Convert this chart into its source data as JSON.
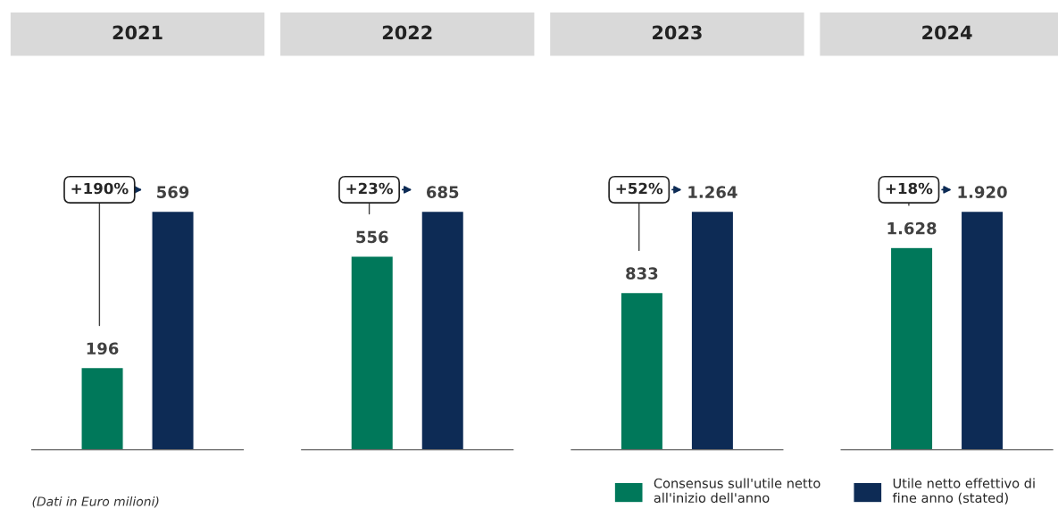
{
  "chart_data": [
    {
      "type": "bar",
      "title": "2021",
      "categories": [
        null
      ],
      "series": [
        {
          "color": "#00785a",
          "values": [
            196
          ],
          "value_labels": [
            "196"
          ]
        },
        {
          "color": "#0d2b55",
          "values": [
            569
          ],
          "value_labels": [
            "569"
          ]
        }
      ],
      "annotations": [
        "+190%",
        "(Dati in Euro milioni)"
      ]
    },
    {
      "type": "bar",
      "title": "2022",
      "categories": [
        null
      ],
      "series": [
        {
          "color": "#00785a",
          "values": [
            556
          ],
          "value_labels": [
            "556"
          ]
        },
        {
          "color": "#0d2b55",
          "values": [
            685
          ],
          "value_labels": [
            "685"
          ]
        }
      ],
      "annotations": [
        "+23%"
      ]
    },
    {
      "type": "bar",
      "title": "2023",
      "categories": [
        null
      ],
      "series": [
        {
          "color": "#00785a",
          "values": [
            833
          ],
          "value_labels": [
            "833"
          ]
        },
        {
          "color": "#0d2b55",
          "values": [
            1264
          ],
          "value_labels": [
            "1.264"
          ]
        }
      ],
      "annotations": [
        "+52%"
      ]
    },
    {
      "type": "bar",
      "title": "2024",
      "categories": [
        null
      ],
      "legend": "bottom",
      "series": [
        {
          "name": "Consensus sull'utile netto\nall'inizio dell'anno",
          "color": "#00785a",
          "values": [
            1628
          ],
          "value_labels": [
            "1.628"
          ]
        },
        {
          "name": "Utile netto effettivo di\nfine anno (stated)",
          "color": "#0d2b55",
          "values": [
            1920
          ],
          "value_labels": [
            "1.920"
          ]
        }
      ],
      "annotations": [
        "+18%"
      ]
    }
  ]
}
